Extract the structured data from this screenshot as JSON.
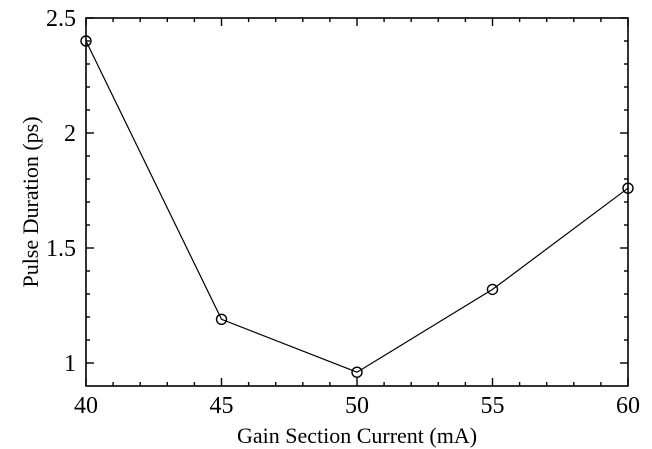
{
  "chart_data": {
    "type": "line",
    "title": "",
    "xlabel": "Gain Section Current (mA)",
    "ylabel": "Pulse Duration (ps)",
    "xlim": [
      40,
      60
    ],
    "ylim": [
      0.9,
      2.5
    ],
    "xticks": [
      40,
      45,
      50,
      55,
      60
    ],
    "xtick_labels": [
      "40",
      "45",
      "50",
      "55",
      "60"
    ],
    "yticks": [
      1,
      1.5,
      2,
      2.5
    ],
    "ytick_labels": [
      "1",
      "1.5",
      "2",
      "2.5"
    ],
    "grid": false,
    "legend": false,
    "marker": "open-circle",
    "series": [
      {
        "x": [
          40,
          45,
          50,
          55,
          60
        ],
        "y": [
          2.4,
          1.19,
          0.96,
          1.32,
          1.76
        ]
      }
    ]
  }
}
